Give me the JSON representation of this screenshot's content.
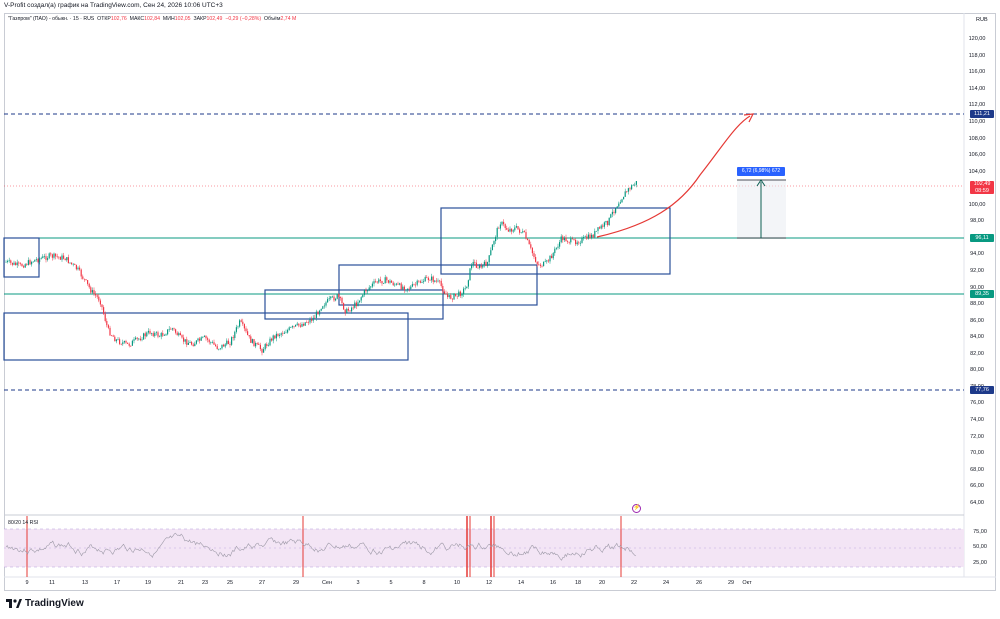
{
  "header": {
    "credit": "V-Profit создал(а) график на TradingView.com, Сен 24, 2026 10:06 UTC+3"
  },
  "symbol": {
    "name": "\"Газпром\" (ПАО) - обыкн. · 15 · RUS",
    "open_label": "ОТКР",
    "open_value": "102,76",
    "high_label": "МАКС",
    "high_value": "102,84",
    "low_label": "МИН",
    "low_value": "102,05",
    "close_label": "ЗАКР",
    "close_value": "102,49",
    "change": "−0,29 (−0,28%)",
    "volume_label": "Объём",
    "volume_value": "2,74 M"
  },
  "price_axis": {
    "currency": "RUB",
    "ticks": [
      "120,00",
      "118,00",
      "116,00",
      "114,00",
      "112,00",
      "110,00",
      "108,00",
      "106,00",
      "104,00",
      "100,00",
      "98,00",
      "96,00",
      "94,00",
      "92,00",
      "90,00",
      "88,00",
      "86,00",
      "84,00",
      "82,00",
      "80,00",
      "78,00",
      "76,00",
      "74,00",
      "72,00",
      "70,00",
      "68,00",
      "66,00",
      "64,00"
    ]
  },
  "levels": {
    "resistance_dashed": "111,21",
    "current_price": "102,49",
    "current_countdown": "08:59",
    "support_upper": "96,11",
    "support_lower": "89,35",
    "support_dashed": "77,76"
  },
  "measure": {
    "label": "6,72 (6,98%) 672"
  },
  "rsi": {
    "label": "80/20 14 RSI",
    "ticks": [
      "75,00",
      "50,00",
      "25,00"
    ]
  },
  "time_axis": {
    "ticks": [
      "9",
      "11",
      "13",
      "17",
      "19",
      "21",
      "23",
      "25",
      "27",
      "29",
      "Сен",
      "3",
      "5",
      "8",
      "10",
      "12",
      "14",
      "16",
      "18",
      "20",
      "22",
      "24",
      "26",
      "29",
      "Окт"
    ]
  },
  "alert_icon": "lightning-icon",
  "branding": {
    "logo_text": "TradingView"
  },
  "colors": {
    "candle_up": "#089981",
    "candle_down": "#f23645",
    "box": "#2a4f9a",
    "green_level": "#089981",
    "dashed_level": "#1e3a8a",
    "forecast_arrow": "#e53935",
    "rsi_line": "#7e57c2",
    "rsi_band": "#f3e5f5"
  }
}
